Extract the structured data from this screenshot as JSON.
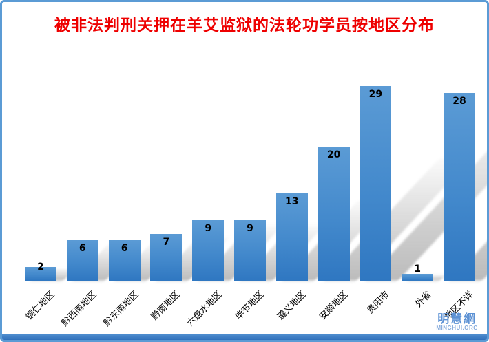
{
  "title": "被非法判刑关押在羊艾监狱的法轮功学员按地区分布",
  "watermark": {
    "cjk": "明慧網",
    "latin": "MINGHUI.ORG"
  },
  "colors": {
    "title": "#ee0000",
    "frame": "#5b9bd5",
    "bar_top": "#5b9bd5",
    "bar_mid": "#4389cc",
    "bar_bottom": "#2f77c1",
    "shadow_dark": "rgba(120,120,120,0.5)",
    "shadow_light": "rgba(150,150,150,0.04)",
    "value_label": "#000000",
    "watermark_cjk": "#5d92d4",
    "watermark_latin": "#86abdc",
    "footer_top": "#4f8ecf",
    "footer_bottom": "#2f6fba"
  },
  "chart_data": {
    "type": "bar",
    "title": "被非法判刑关押在羊艾监狱的法轮功学员按地区分布",
    "categories": [
      "铜仁地区",
      "黔西南地区",
      "黔东南地区",
      "黔南地区",
      "六盘水地区",
      "毕节地区",
      "遵义地区",
      "安顺地区",
      "贵阳市",
      "外省",
      "地区不详"
    ],
    "values": [
      2,
      6,
      6,
      7,
      9,
      9,
      13,
      20,
      29,
      1,
      28
    ],
    "xlabel": "",
    "ylabel": "",
    "ylim": [
      0,
      30
    ],
    "grid": false,
    "legend": false,
    "data_labels": "inside-end",
    "bar_shadow_style": "perspective-upper-right",
    "category_label_rotation_deg": -45
  }
}
